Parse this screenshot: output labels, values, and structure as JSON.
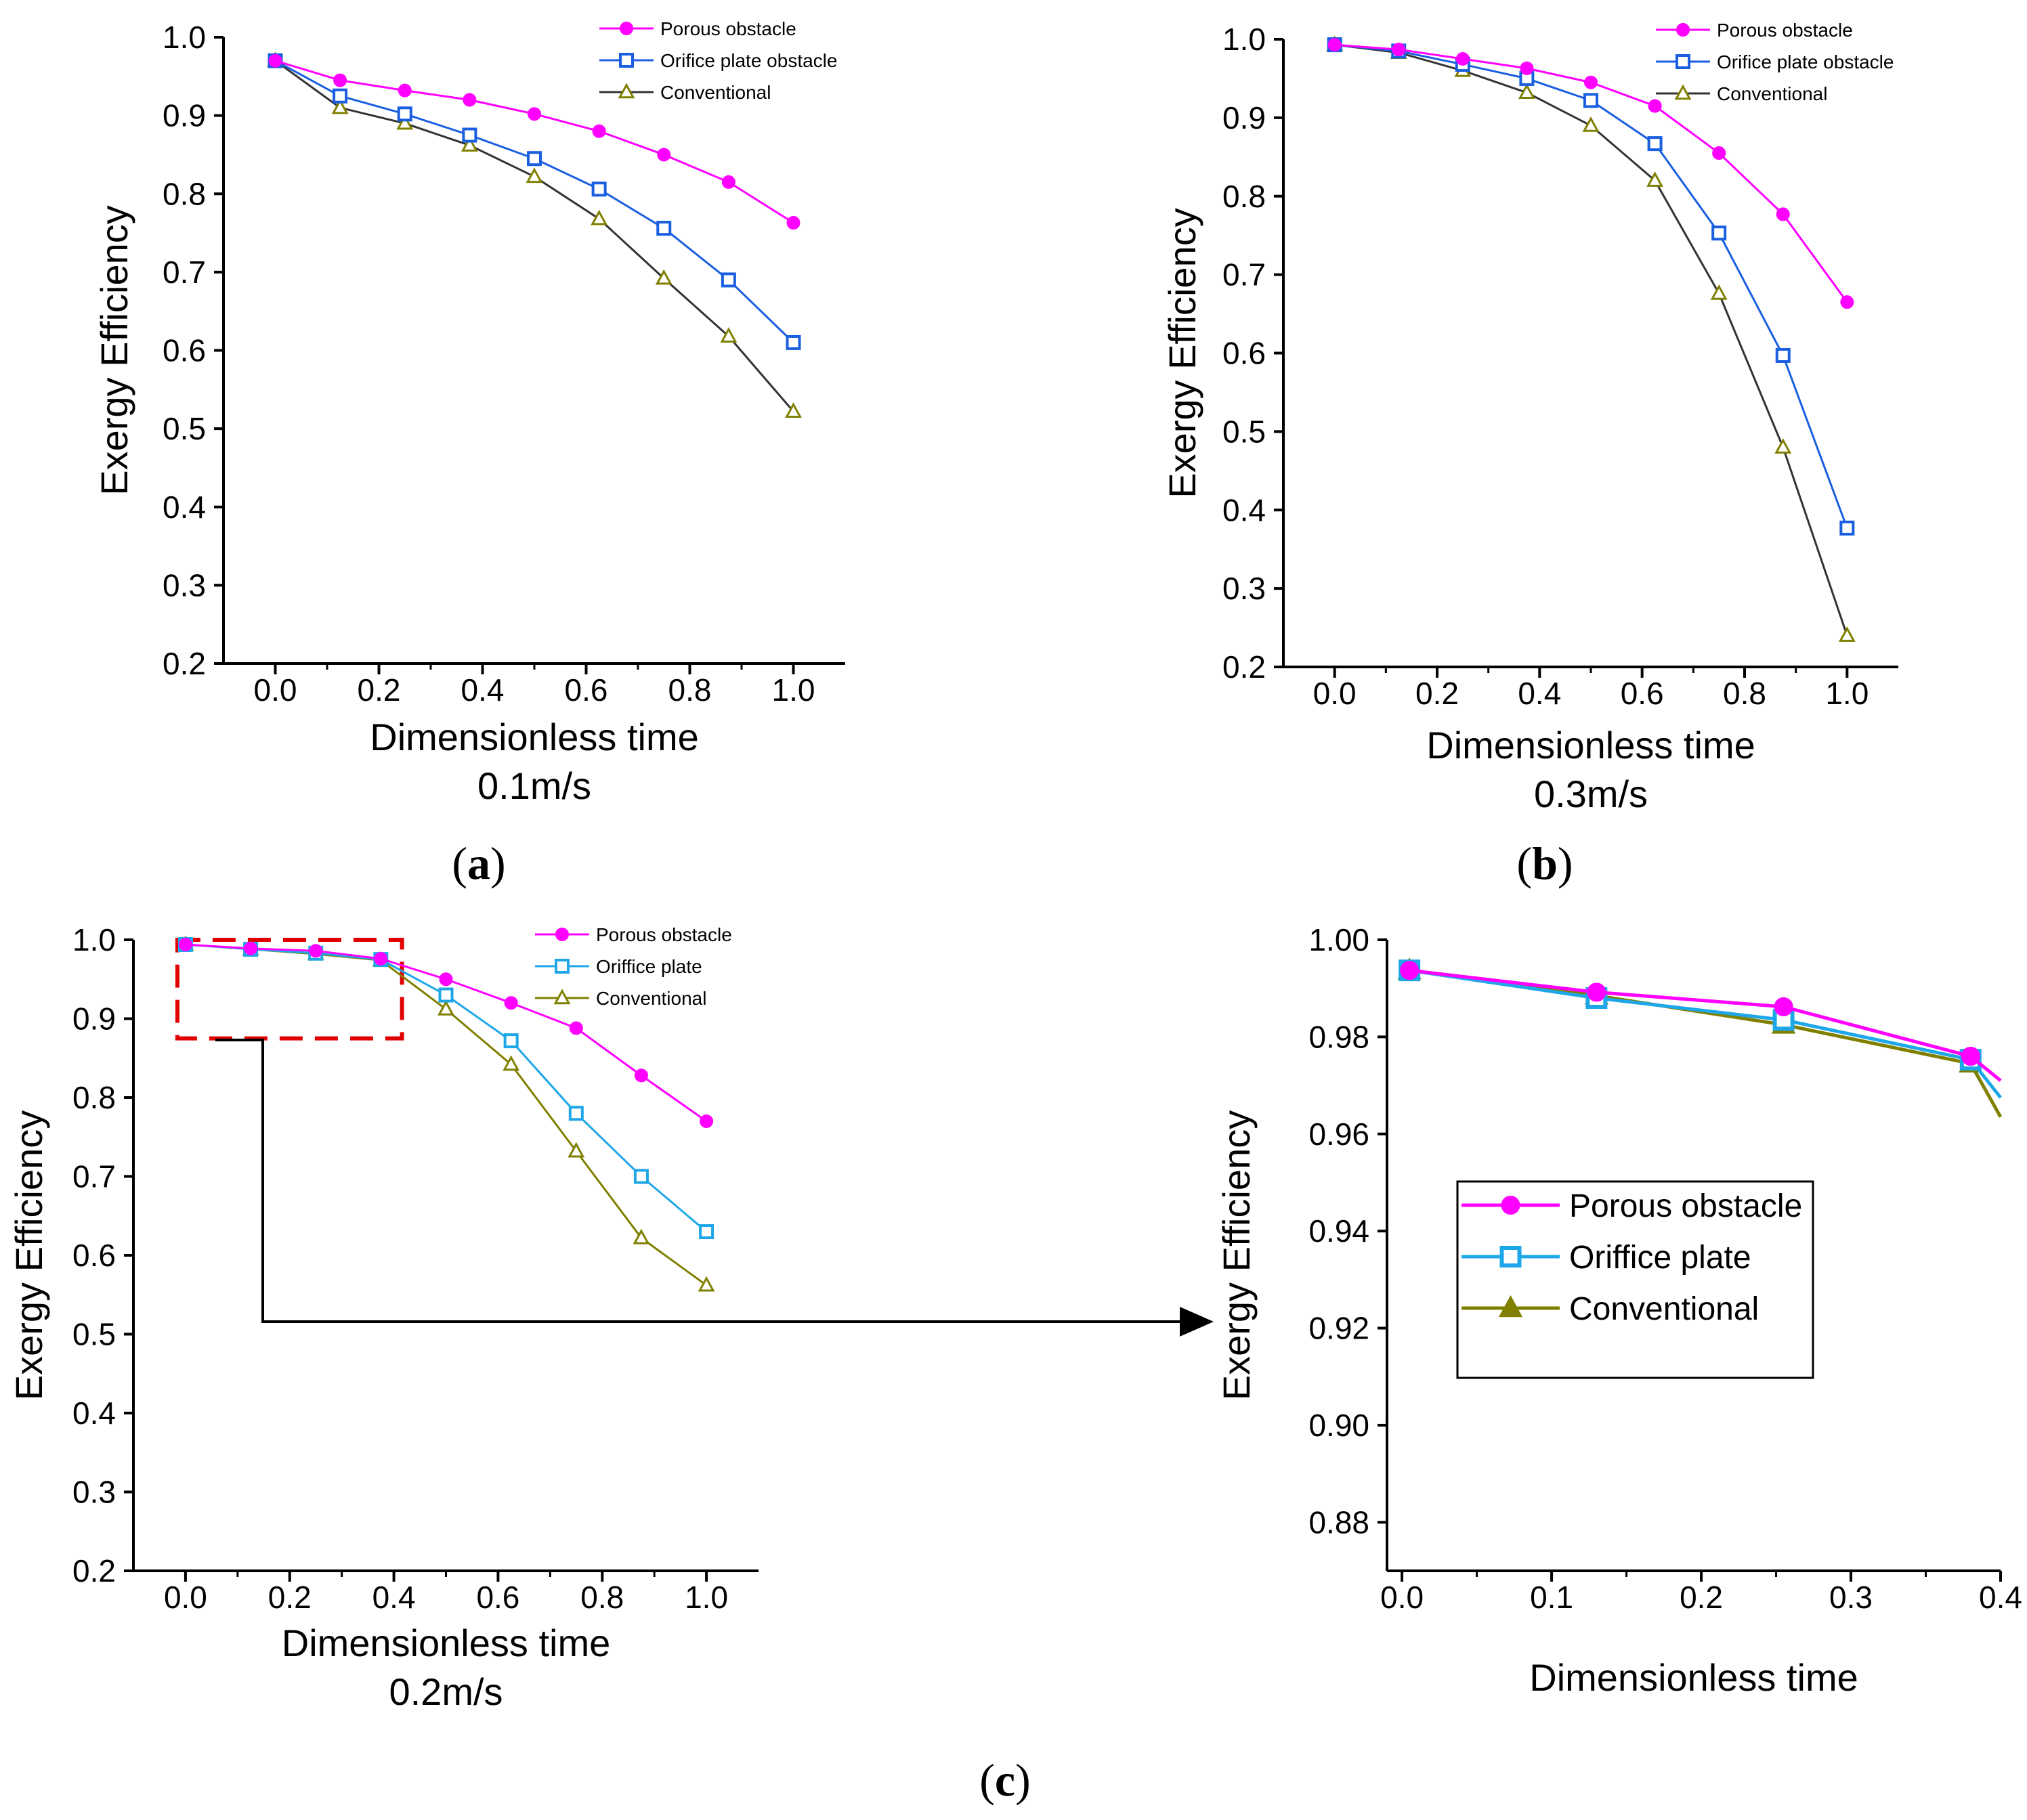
{
  "colors": {
    "porous": "#ff00ff",
    "orifice_a": "#1a5fe0",
    "orifice": "#1ea7e8",
    "conventional": "#808000",
    "conventional_line": "#333333",
    "highlight": "#e00000",
    "axis": "#000000"
  },
  "panel_labels": {
    "a": "a",
    "b": "b",
    "c": "c"
  },
  "chart_data": [
    {
      "id": "a",
      "type": "line",
      "xlabel": "Dimensionless time",
      "ylabel": "Exergy Efficiency",
      "subtitle": "0.1m/s",
      "xlim": [
        -0.1,
        1.1
      ],
      "ylim": [
        0.2,
        1.0
      ],
      "xticks": [
        "0.0",
        "0.2",
        "0.4",
        "0.6",
        "0.8",
        "1.0"
      ],
      "yticks": [
        "0.2",
        "0.3",
        "0.4",
        "0.5",
        "0.6",
        "0.7",
        "0.8",
        "0.9",
        "1.0"
      ],
      "legend": "top-right",
      "x": [
        0,
        0.125,
        0.25,
        0.375,
        0.5,
        0.625,
        0.75,
        0.875,
        1.0
      ],
      "series": [
        {
          "name": "Porous obstacle",
          "marker": "circle",
          "values": [
            0.97,
            0.945,
            0.932,
            0.92,
            0.902,
            0.88,
            0.85,
            0.815,
            0.763
          ]
        },
        {
          "name": "Orifice plate obstacle",
          "marker": "square",
          "values": [
            0.97,
            0.925,
            0.902,
            0.875,
            0.845,
            0.806,
            0.756,
            0.69,
            0.61
          ]
        },
        {
          "name": "Conventional",
          "marker": "triangle",
          "values": [
            0.97,
            0.91,
            0.89,
            0.862,
            0.822,
            0.768,
            0.692,
            0.618,
            0.522
          ]
        }
      ]
    },
    {
      "id": "b",
      "type": "line",
      "xlabel": "Dimensionless time",
      "ylabel": "Exergy Efficiency",
      "subtitle": "0.3m/s",
      "xlim": [
        -0.1,
        1.1
      ],
      "ylim": [
        0.2,
        1.0
      ],
      "xticks": [
        "0.0",
        "0.2",
        "0.4",
        "0.6",
        "0.8",
        "1.0"
      ],
      "yticks": [
        "0.2",
        "0.3",
        "0.4",
        "0.5",
        "0.6",
        "0.7",
        "0.8",
        "0.9",
        "1.0"
      ],
      "legend": "top-right",
      "x": [
        0,
        0.125,
        0.25,
        0.375,
        0.5,
        0.625,
        0.75,
        0.875,
        1.0
      ],
      "series": [
        {
          "name": "Porous obstacle",
          "marker": "circle",
          "values": [
            0.993,
            0.987,
            0.975,
            0.963,
            0.945,
            0.915,
            0.855,
            0.777,
            0.665
          ]
        },
        {
          "name": "Orifice plate obstacle",
          "marker": "square",
          "values": [
            0.993,
            0.985,
            0.968,
            0.95,
            0.922,
            0.867,
            0.753,
            0.597,
            0.377
          ]
        },
        {
          "name": "Conventional",
          "marker": "triangle",
          "values": [
            0.993,
            0.983,
            0.96,
            0.932,
            0.89,
            0.82,
            0.676,
            0.48,
            0.24
          ]
        }
      ]
    },
    {
      "id": "c1",
      "type": "line",
      "xlabel": "Dimensionless time",
      "ylabel": "Exergy Efficiency",
      "subtitle": "0.2m/s",
      "xlim": [
        -0.1,
        1.1
      ],
      "ylim": [
        0.2,
        1.0
      ],
      "xticks": [
        "0.0",
        "0.2",
        "0.4",
        "0.6",
        "0.8",
        "1.0"
      ],
      "yticks": [
        "0.2",
        "0.3",
        "0.4",
        "0.5",
        "0.6",
        "0.7",
        "0.8",
        "0.9",
        "1.0"
      ],
      "legend": "top-right",
      "x": [
        0,
        0.125,
        0.25,
        0.375,
        0.5,
        0.625,
        0.75,
        0.875,
        1.0
      ],
      "series": [
        {
          "name": "Porous obstacle",
          "marker": "circle",
          "values": [
            0.994,
            0.989,
            0.986,
            0.976,
            0.95,
            0.92,
            0.888,
            0.828,
            0.77
          ]
        },
        {
          "name": "Oriffice plate",
          "marker": "square",
          "values": [
            0.994,
            0.988,
            0.983,
            0.975,
            0.93,
            0.872,
            0.78,
            0.7,
            0.63
          ]
        },
        {
          "name": "Conventional",
          "marker": "triangle",
          "values": [
            0.994,
            0.988,
            0.982,
            0.974,
            0.912,
            0.842,
            0.732,
            0.622,
            0.562
          ]
        }
      ],
      "zoom_region": {
        "x": [
          0,
          0.4
        ],
        "y": [
          0.875,
          1.0
        ]
      }
    },
    {
      "id": "c2",
      "type": "line",
      "xlabel": "Dimensionless time",
      "ylabel": "Exergy Efficiency",
      "xlim": [
        -0.01,
        0.4
      ],
      "ylim": [
        0.87,
        1.0
      ],
      "xticks": [
        "0.0",
        "0.1",
        "0.2",
        "0.3",
        "0.4"
      ],
      "yticks": [
        "0.88",
        "0.90",
        "0.92",
        "0.94",
        "0.96",
        "0.98",
        "1.00"
      ],
      "legend": "center-right",
      "x": [
        0.005,
        0.13,
        0.255,
        0.38
      ],
      "series": [
        {
          "name": "Porous obstacle",
          "marker": "circle",
          "values": [
            0.9937,
            0.9892,
            0.9862,
            0.976
          ],
          "tail": 0.971
        },
        {
          "name": "Oriffice plate",
          "marker": "square",
          "values": [
            0.9937,
            0.988,
            0.9835,
            0.9753
          ],
          "tail": 0.9675
        },
        {
          "name": "Conventional",
          "marker": "triangle",
          "values": [
            0.9937,
            0.9885,
            0.9825,
            0.9745
          ],
          "tail": 0.9635
        }
      ]
    }
  ]
}
